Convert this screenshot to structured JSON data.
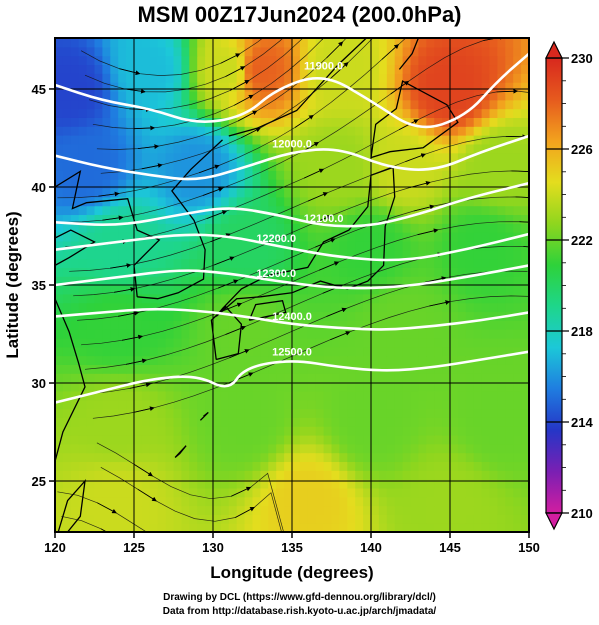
{
  "title": "MSM 00Z17Jun2024 (200.0hPa)",
  "credit_line1": "Drawing by DCL (https://www.gfd-dennou.org/library/dcl/)",
  "credit_line2": "Data from http://database.rish.kyoto-u.ac.jp/arch/jmadata/",
  "chart_data": {
    "type": "heatmap",
    "xlabel": "Longitude (degrees)",
    "ylabel": "Latitude  (degrees)",
    "xlim": [
      120,
      150
    ],
    "ylim": [
      22.4,
      47.6
    ],
    "xticks": [
      120,
      125,
      130,
      135,
      140,
      145,
      150
    ],
    "yticks": [
      25,
      30,
      35,
      40,
      45
    ],
    "grid": true,
    "colorbar": {
      "min": 210,
      "max": 230,
      "ticks": [
        210,
        214,
        218,
        222,
        226,
        230
      ],
      "colors": [
        "#d21ea0",
        "#7a1fb3",
        "#2536c7",
        "#1f7de0",
        "#1cc8d8",
        "#1ed68a",
        "#2ed23a",
        "#8fd61e",
        "#e4dd1e",
        "#f2a21e",
        "#e65a1e",
        "#d8281e"
      ]
    },
    "temperature_field": [
      {
        "lon": 121,
        "lat": 45,
        "value": 214
      },
      {
        "lon": 126,
        "lat": 46,
        "value": 217
      },
      {
        "lon": 131,
        "lat": 46,
        "value": 224
      },
      {
        "lon": 133,
        "lat": 46,
        "value": 228
      },
      {
        "lon": 138,
        "lat": 46,
        "value": 224
      },
      {
        "lon": 145,
        "lat": 45,
        "value": 229
      },
      {
        "lon": 122,
        "lat": 41,
        "value": 215
      },
      {
        "lon": 129,
        "lat": 41,
        "value": 216
      },
      {
        "lon": 138,
        "lat": 41,
        "value": 223
      },
      {
        "lon": 142,
        "lat": 41,
        "value": 224
      },
      {
        "lon": 148,
        "lat": 41,
        "value": 223
      },
      {
        "lon": 124,
        "lat": 37,
        "value": 219
      },
      {
        "lon": 132,
        "lat": 37,
        "value": 220
      },
      {
        "lon": 140,
        "lat": 37,
        "value": 221
      },
      {
        "lon": 147,
        "lat": 37,
        "value": 221
      },
      {
        "lon": 124,
        "lat": 33,
        "value": 221
      },
      {
        "lon": 132,
        "lat": 33,
        "value": 222
      },
      {
        "lon": 142,
        "lat": 33,
        "value": 222
      },
      {
        "lon": 124,
        "lat": 28,
        "value": 223
      },
      {
        "lon": 132,
        "lat": 28,
        "value": 222
      },
      {
        "lon": 140,
        "lat": 28,
        "value": 222
      },
      {
        "lon": 148,
        "lat": 28,
        "value": 222
      },
      {
        "lon": 124,
        "lat": 24,
        "value": 224
      },
      {
        "lon": 136,
        "lat": 24,
        "value": 225
      },
      {
        "lon": 145,
        "lat": 24,
        "value": 223
      }
    ],
    "contours": [
      {
        "label": "11900.0",
        "points": [
          [
            120,
            45.2
          ],
          [
            123,
            44.4
          ],
          [
            126,
            44.0
          ],
          [
            129,
            43.2
          ],
          [
            132,
            43.6
          ],
          [
            134,
            45.0
          ],
          [
            137,
            45.8
          ],
          [
            140,
            44.4
          ],
          [
            143,
            42.8
          ],
          [
            146,
            43.6
          ],
          [
            148,
            45.4
          ],
          [
            150,
            46.8
          ]
        ]
      },
      {
        "label": "12000.0",
        "points": [
          [
            120,
            41.6
          ],
          [
            123,
            41.0
          ],
          [
            126,
            40.6
          ],
          [
            129,
            40.3
          ],
          [
            132,
            41.0
          ],
          [
            135,
            41.8
          ],
          [
            138,
            42.0
          ],
          [
            141,
            41.0
          ],
          [
            144,
            40.8
          ],
          [
            147,
            41.8
          ],
          [
            150,
            42.6
          ]
        ]
      },
      {
        "label": "12100.0",
        "points": [
          [
            120,
            38.2
          ],
          [
            124,
            38.0
          ],
          [
            128,
            38.6
          ],
          [
            131,
            39.0
          ],
          [
            134,
            38.6
          ],
          [
            137,
            38.0
          ],
          [
            140,
            38.0
          ],
          [
            143,
            38.6
          ],
          [
            146,
            39.4
          ],
          [
            150,
            40.2
          ]
        ]
      },
      {
        "label": "12200.0",
        "points": [
          [
            120,
            36.8
          ],
          [
            124,
            37.2
          ],
          [
            128,
            37.6
          ],
          [
            131,
            37.5
          ],
          [
            134,
            37.0
          ],
          [
            138,
            36.4
          ],
          [
            142,
            36.2
          ],
          [
            146,
            36.8
          ],
          [
            150,
            37.6
          ]
        ]
      },
      {
        "label": "12300.0",
        "points": [
          [
            120,
            35.0
          ],
          [
            124,
            35.4
          ],
          [
            128,
            35.8
          ],
          [
            131,
            35.6
          ],
          [
            134,
            35.2
          ],
          [
            138,
            34.8
          ],
          [
            142,
            34.9
          ],
          [
            146,
            35.4
          ],
          [
            150,
            36.0
          ]
        ]
      },
      {
        "label": "12400.0",
        "points": [
          [
            120,
            33.4
          ],
          [
            123,
            33.6
          ],
          [
            126,
            33.8
          ],
          [
            129,
            33.7
          ],
          [
            132,
            33.4
          ],
          [
            135,
            33.0
          ],
          [
            138,
            32.8
          ],
          [
            141,
            32.7
          ],
          [
            144,
            32.9
          ],
          [
            147,
            33.2
          ],
          [
            150,
            33.6
          ]
        ]
      },
      {
        "label": "12500.0",
        "points": [
          [
            120,
            29.0
          ],
          [
            123,
            29.6
          ],
          [
            126,
            30.2
          ],
          [
            129,
            30.4
          ],
          [
            131,
            29.6
          ],
          [
            132,
            30.8
          ],
          [
            135,
            31.2
          ],
          [
            138,
            30.8
          ],
          [
            141,
            30.6
          ],
          [
            144,
            30.8
          ],
          [
            147,
            31.2
          ],
          [
            150,
            31.6
          ]
        ]
      }
    ]
  }
}
